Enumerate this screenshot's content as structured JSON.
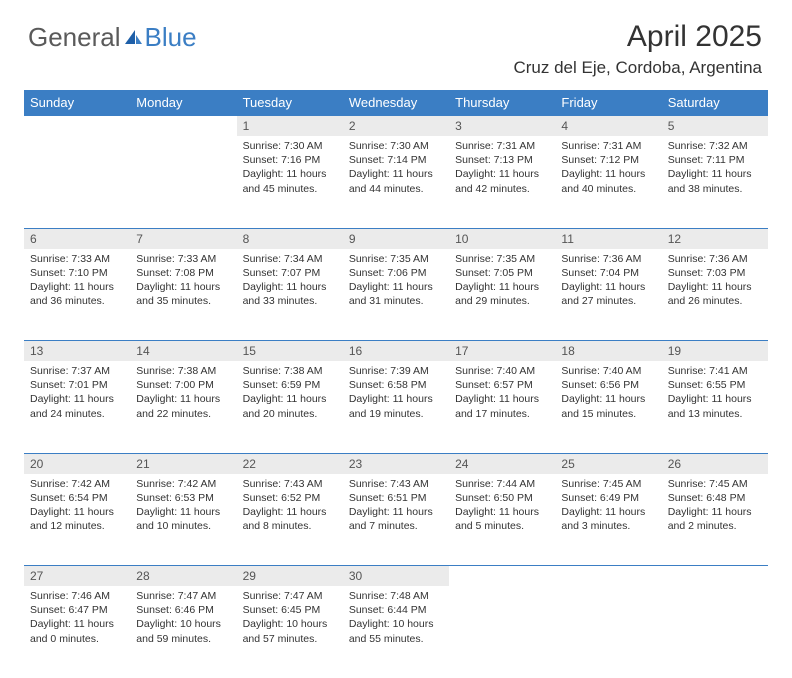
{
  "logo": {
    "t1": "General",
    "t2": "Blue",
    "sail_color": "#3b7ec4"
  },
  "header": {
    "title": "April 2025",
    "location": "Cruz del Eje, Cordoba, Argentina"
  },
  "colors": {
    "header_bg": "#3b7ec4",
    "header_fg": "#ffffff",
    "daynum_bg": "#ebebeb",
    "daynum_fg": "#555555",
    "text": "#333333",
    "rule": "#3b7ec4"
  },
  "day_labels": [
    "Sunday",
    "Monday",
    "Tuesday",
    "Wednesday",
    "Thursday",
    "Friday",
    "Saturday"
  ],
  "weeks": [
    [
      null,
      null,
      {
        "n": "1",
        "sr": "7:30 AM",
        "ss": "7:16 PM",
        "dl": "11 hours and 45 minutes."
      },
      {
        "n": "2",
        "sr": "7:30 AM",
        "ss": "7:14 PM",
        "dl": "11 hours and 44 minutes."
      },
      {
        "n": "3",
        "sr": "7:31 AM",
        "ss": "7:13 PM",
        "dl": "11 hours and 42 minutes."
      },
      {
        "n": "4",
        "sr": "7:31 AM",
        "ss": "7:12 PM",
        "dl": "11 hours and 40 minutes."
      },
      {
        "n": "5",
        "sr": "7:32 AM",
        "ss": "7:11 PM",
        "dl": "11 hours and 38 minutes."
      }
    ],
    [
      {
        "n": "6",
        "sr": "7:33 AM",
        "ss": "7:10 PM",
        "dl": "11 hours and 36 minutes."
      },
      {
        "n": "7",
        "sr": "7:33 AM",
        "ss": "7:08 PM",
        "dl": "11 hours and 35 minutes."
      },
      {
        "n": "8",
        "sr": "7:34 AM",
        "ss": "7:07 PM",
        "dl": "11 hours and 33 minutes."
      },
      {
        "n": "9",
        "sr": "7:35 AM",
        "ss": "7:06 PM",
        "dl": "11 hours and 31 minutes."
      },
      {
        "n": "10",
        "sr": "7:35 AM",
        "ss": "7:05 PM",
        "dl": "11 hours and 29 minutes."
      },
      {
        "n": "11",
        "sr": "7:36 AM",
        "ss": "7:04 PM",
        "dl": "11 hours and 27 minutes."
      },
      {
        "n": "12",
        "sr": "7:36 AM",
        "ss": "7:03 PM",
        "dl": "11 hours and 26 minutes."
      }
    ],
    [
      {
        "n": "13",
        "sr": "7:37 AM",
        "ss": "7:01 PM",
        "dl": "11 hours and 24 minutes."
      },
      {
        "n": "14",
        "sr": "7:38 AM",
        "ss": "7:00 PM",
        "dl": "11 hours and 22 minutes."
      },
      {
        "n": "15",
        "sr": "7:38 AM",
        "ss": "6:59 PM",
        "dl": "11 hours and 20 minutes."
      },
      {
        "n": "16",
        "sr": "7:39 AM",
        "ss": "6:58 PM",
        "dl": "11 hours and 19 minutes."
      },
      {
        "n": "17",
        "sr": "7:40 AM",
        "ss": "6:57 PM",
        "dl": "11 hours and 17 minutes."
      },
      {
        "n": "18",
        "sr": "7:40 AM",
        "ss": "6:56 PM",
        "dl": "11 hours and 15 minutes."
      },
      {
        "n": "19",
        "sr": "7:41 AM",
        "ss": "6:55 PM",
        "dl": "11 hours and 13 minutes."
      }
    ],
    [
      {
        "n": "20",
        "sr": "7:42 AM",
        "ss": "6:54 PM",
        "dl": "11 hours and 12 minutes."
      },
      {
        "n": "21",
        "sr": "7:42 AM",
        "ss": "6:53 PM",
        "dl": "11 hours and 10 minutes."
      },
      {
        "n": "22",
        "sr": "7:43 AM",
        "ss": "6:52 PM",
        "dl": "11 hours and 8 minutes."
      },
      {
        "n": "23",
        "sr": "7:43 AM",
        "ss": "6:51 PM",
        "dl": "11 hours and 7 minutes."
      },
      {
        "n": "24",
        "sr": "7:44 AM",
        "ss": "6:50 PM",
        "dl": "11 hours and 5 minutes."
      },
      {
        "n": "25",
        "sr": "7:45 AM",
        "ss": "6:49 PM",
        "dl": "11 hours and 3 minutes."
      },
      {
        "n": "26",
        "sr": "7:45 AM",
        "ss": "6:48 PM",
        "dl": "11 hours and 2 minutes."
      }
    ],
    [
      {
        "n": "27",
        "sr": "7:46 AM",
        "ss": "6:47 PM",
        "dl": "11 hours and 0 minutes."
      },
      {
        "n": "28",
        "sr": "7:47 AM",
        "ss": "6:46 PM",
        "dl": "10 hours and 59 minutes."
      },
      {
        "n": "29",
        "sr": "7:47 AM",
        "ss": "6:45 PM",
        "dl": "10 hours and 57 minutes."
      },
      {
        "n": "30",
        "sr": "7:48 AM",
        "ss": "6:44 PM",
        "dl": "10 hours and 55 minutes."
      },
      null,
      null,
      null
    ]
  ],
  "labels": {
    "sunrise_prefix": "Sunrise: ",
    "sunset_prefix": "Sunset: ",
    "daylight_prefix": "Daylight: "
  }
}
